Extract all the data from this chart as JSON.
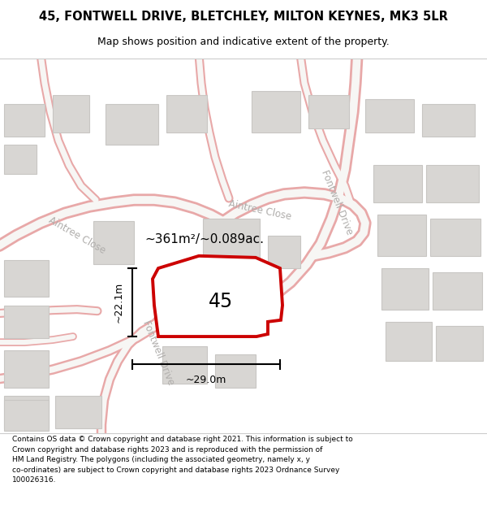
{
  "title_line1": "45, FONTWELL DRIVE, BLETCHLEY, MILTON KEYNES, MK3 5LR",
  "title_line2": "Map shows position and indicative extent of the property.",
  "footer_text": "Contains OS data © Crown copyright and database right 2021. This information is subject to\nCrown copyright and database rights 2023 and is reproduced with the permission of\nHM Land Registry. The polygons (including the associated geometry, namely x, y\nco-ordinates) are subject to Crown copyright and database rights 2023 Ordnance Survey\n100026316.",
  "map_bg": "#f7f6f4",
  "road_outer": "#e8a8a8",
  "road_inner": "#f7f6f4",
  "building_fill": "#d8d6d3",
  "building_stroke": "#c8c6c3",
  "property_stroke": "#cc0000",
  "property_fill": "#ffffff",
  "property_label": "45",
  "area_label": "~361m²/~0.089ac.",
  "width_label": "~29.0m",
  "height_label": "~22.1m",
  "street_color": "#b0aeac"
}
